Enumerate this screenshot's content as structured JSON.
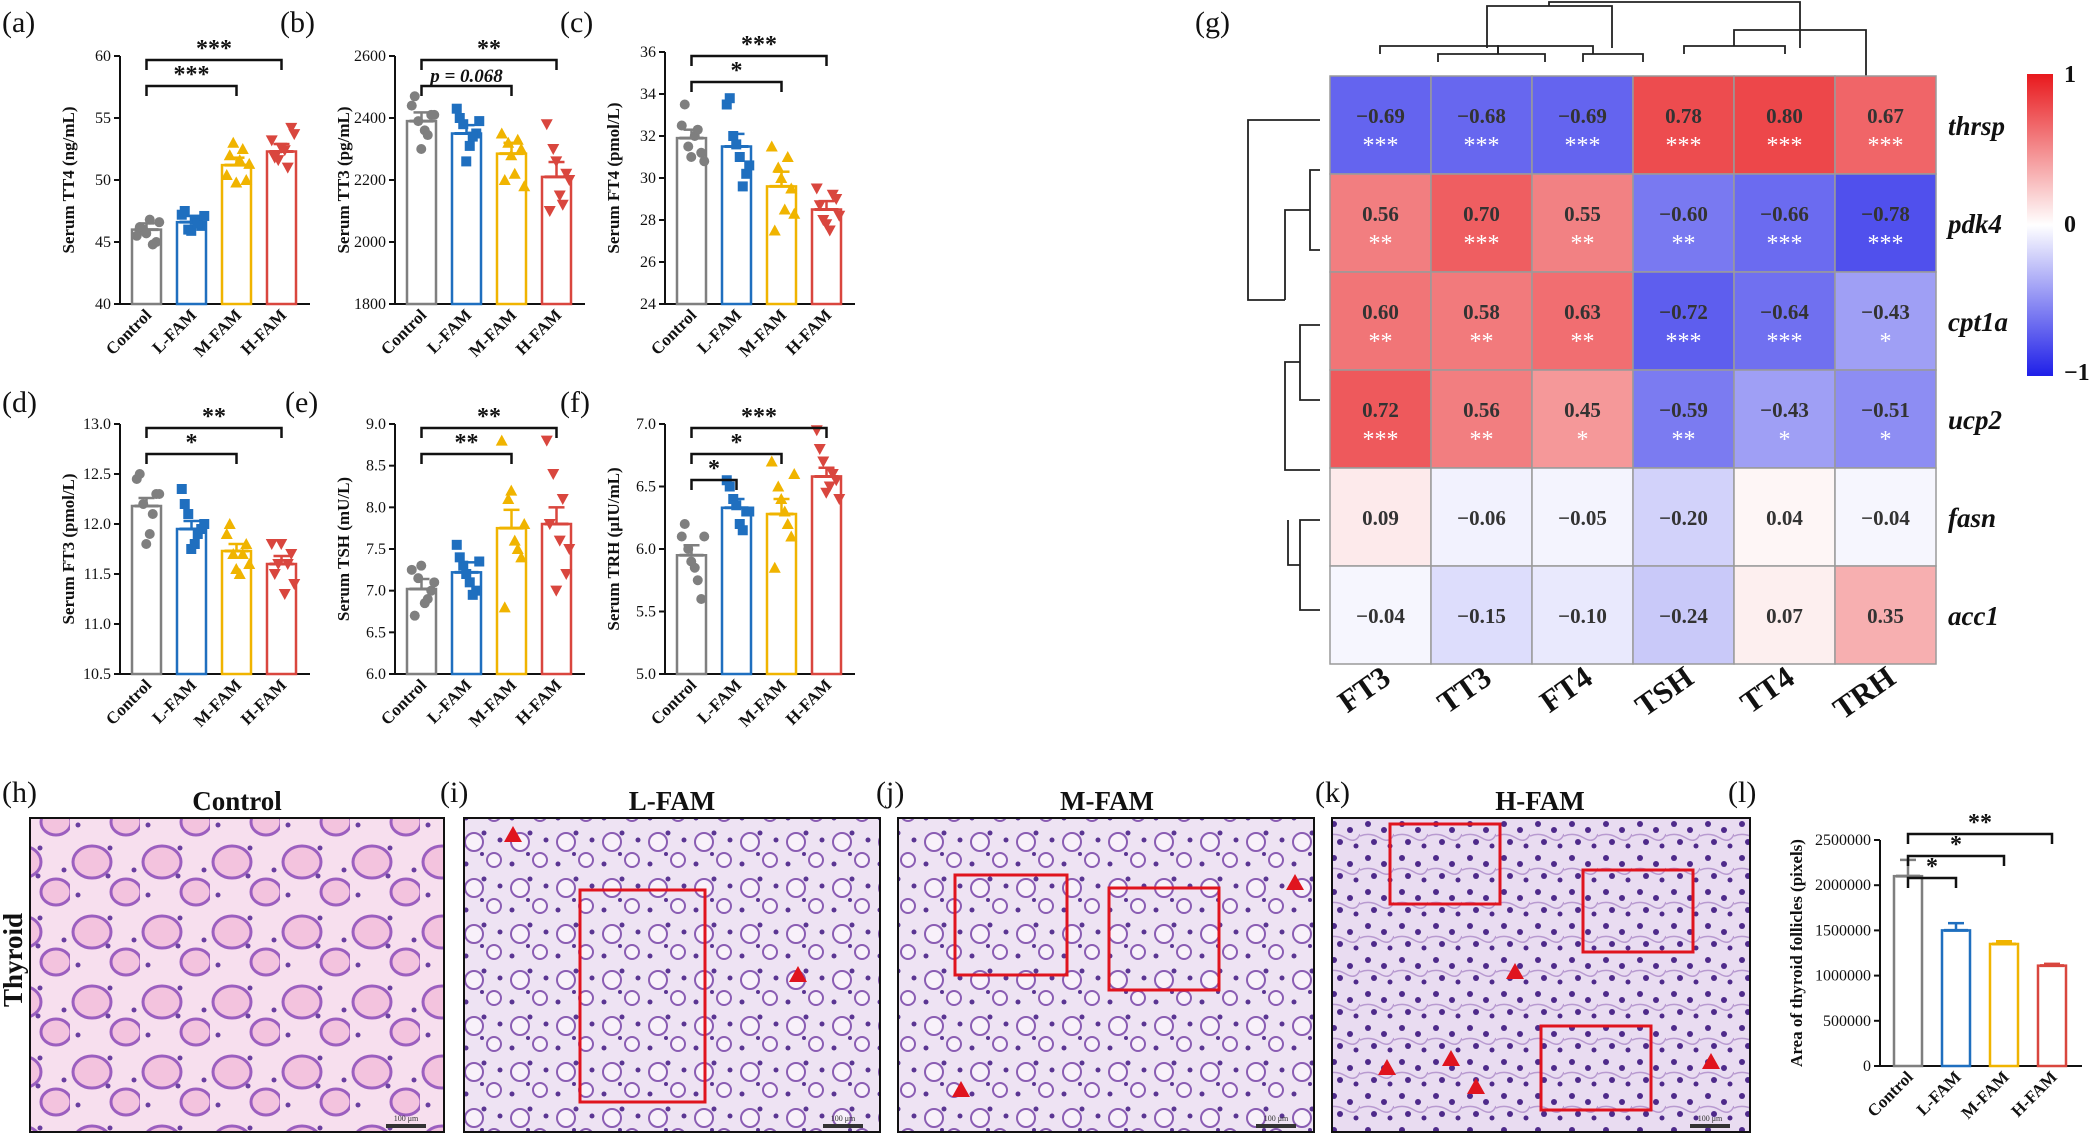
{
  "panel_labels": {
    "a": "(a)",
    "b": "(b)",
    "c": "(c)",
    "d": "(d)",
    "e": "(e)",
    "f": "(f)",
    "g": "(g)",
    "h": "(h)",
    "i": "(i)",
    "j": "(j)",
    "k": "(k)",
    "l": "(l)"
  },
  "groups": [
    "Control",
    "L-FAM",
    "M-FAM",
    "H-FAM"
  ],
  "group_colors": [
    "#7f7f7f",
    "#1f6fbf",
    "#f0b400",
    "#d9463e"
  ],
  "point_shapes": [
    "circle",
    "square",
    "triangle-up",
    "triangle-down"
  ],
  "chart_data": [
    {
      "id": "a",
      "type": "bar",
      "ylabel": "Serum TT4 (ng/mL)",
      "ylim": [
        40,
        60
      ],
      "yticks": [
        "40",
        "45",
        "50",
        "55",
        "60"
      ],
      "categories": [
        "Control",
        "L-FAM",
        "M-FAM",
        "H-FAM"
      ],
      "values": [
        46.0,
        46.6,
        51.2,
        52.3
      ],
      "errors": [
        0.5,
        0.5,
        0.6,
        0.6
      ],
      "points": [
        [
          45.5,
          46,
          46.8,
          45,
          46.2,
          45.7,
          44.8,
          46.6
        ],
        [
          47.2,
          46,
          46.8,
          46.3,
          47.5,
          45.9,
          46.5,
          47.1
        ],
        [
          50.4,
          53,
          51.6,
          50,
          52,
          49.8,
          52.5,
          51.3
        ],
        [
          53.2,
          51.6,
          52.4,
          54.2,
          51.8,
          52.6,
          51,
          53.7
        ]
      ],
      "sig": [
        {
          "from": 0,
          "to": 3,
          "label": "***"
        },
        {
          "from": 0,
          "to": 2,
          "label": "***"
        }
      ]
    },
    {
      "id": "b",
      "type": "bar",
      "ylabel": "Serum TT3 (pg/mL)",
      "ylim": [
        1800,
        2600
      ],
      "yticks": [
        "1800",
        "2000",
        "2200",
        "2400",
        "2600"
      ],
      "categories": [
        "Control",
        "L-FAM",
        "M-FAM",
        "H-FAM"
      ],
      "values": [
        2390,
        2350,
        2285,
        2210
      ],
      "errors": [
        28,
        27,
        35,
        48
      ],
      "points": [
        [
          2440,
          2390,
          2360,
          2410,
          2470,
          2300,
          2345,
          2410
        ],
        [
          2430,
          2380,
          2310,
          2350,
          2400,
          2260,
          2340,
          2390
        ],
        [
          2350,
          2320,
          2220,
          2300,
          2200,
          2280,
          2330,
          2180
        ],
        [
          2380,
          2300,
          2150,
          2220,
          2100,
          2260,
          2120,
          2200
        ]
      ],
      "sig": [
        {
          "from": 0,
          "to": 3,
          "label": "**"
        },
        {
          "from": 0,
          "to": 2,
          "label": "p = 0.068"
        }
      ]
    },
    {
      "id": "c",
      "type": "bar",
      "ylabel": "Serum FT4 (pmol/L)",
      "ylim": [
        24,
        36
      ],
      "yticks": [
        "24",
        "26",
        "28",
        "30",
        "32",
        "34",
        "36"
      ],
      "categories": [
        "Control",
        "L-FAM",
        "M-FAM",
        "H-FAM"
      ],
      "values": [
        31.9,
        31.5,
        29.6,
        28.5
      ],
      "errors": [
        0.4,
        0.6,
        0.7,
        0.4
      ],
      "points": [
        [
          32.5,
          31.5,
          32,
          31.2,
          33.5,
          31,
          32.3,
          30.8
        ],
        [
          33.5,
          32,
          31,
          30.2,
          33.8,
          31.6,
          29.6,
          30.6
        ],
        [
          31.5,
          30.5,
          28.5,
          29.5,
          27.5,
          30,
          31,
          28.3
        ],
        [
          29.5,
          28,
          27.5,
          29,
          28.7,
          27.8,
          29.2,
          28.2
        ]
      ],
      "sig": [
        {
          "from": 0,
          "to": 3,
          "label": "***"
        },
        {
          "from": 0,
          "to": 2,
          "label": "*"
        }
      ]
    },
    {
      "id": "d",
      "type": "bar",
      "ylabel": "Serum FT3 (pmol/L)",
      "ylim": [
        10.5,
        13.0
      ],
      "yticks": [
        "10.5",
        "11.0",
        "11.5",
        "12.0",
        "12.5",
        "13.0"
      ],
      "categories": [
        "Control",
        "L-FAM",
        "M-FAM",
        "H-FAM"
      ],
      "values": [
        12.18,
        11.95,
        11.73,
        11.6
      ],
      "errors": [
        0.08,
        0.08,
        0.07,
        0.08
      ],
      "points": [
        [
          12.45,
          12.2,
          11.9,
          12.3,
          12.5,
          11.8,
          12.1,
          12.3
        ],
        [
          12.35,
          12.1,
          11.8,
          11.95,
          12.2,
          11.75,
          11.9,
          12.0
        ],
        [
          11.9,
          11.7,
          11.5,
          11.8,
          12.0,
          11.55,
          11.7,
          11.6
        ],
        [
          11.8,
          11.6,
          11.3,
          11.7,
          11.5,
          11.8,
          11.6,
          11.4
        ]
      ],
      "sig": [
        {
          "from": 0,
          "to": 3,
          "label": "**"
        },
        {
          "from": 0,
          "to": 2,
          "label": "*"
        }
      ]
    },
    {
      "id": "e",
      "type": "bar",
      "ylabel": "Serum TSH (mU/L)",
      "ylim": [
        6.0,
        9.0
      ],
      "yticks": [
        "6.0",
        "6.5",
        "7.0",
        "7.5",
        "8.0",
        "8.5",
        "9.0"
      ],
      "categories": [
        "Control",
        "L-FAM",
        "M-FAM",
        "H-FAM"
      ],
      "values": [
        7.02,
        7.22,
        7.75,
        7.8
      ],
      "errors": [
        0.12,
        0.12,
        0.22,
        0.2
      ],
      "points": [
        [
          7.25,
          7.15,
          6.85,
          7.0,
          6.7,
          7.3,
          6.9,
          7.1
        ],
        [
          7.55,
          7.3,
          7.1,
          7.0,
          7.4,
          7.2,
          6.95,
          7.35
        ],
        [
          8.8,
          8.1,
          7.6,
          7.4,
          6.8,
          8.2,
          7.5,
          7.8
        ],
        [
          8.8,
          8.4,
          7.6,
          7.2,
          7.8,
          7.0,
          8.1,
          7.5
        ]
      ],
      "sig": [
        {
          "from": 0,
          "to": 3,
          "label": "**"
        },
        {
          "from": 0,
          "to": 2,
          "label": "**"
        }
      ]
    },
    {
      "id": "f",
      "type": "bar",
      "ylabel": "Serum TRH (μIU/mL)",
      "ylim": [
        5.0,
        7.0
      ],
      "yticks": [
        "5.0",
        "5.5",
        "6.0",
        "6.5",
        "7.0"
      ],
      "categories": [
        "Control",
        "L-FAM",
        "M-FAM",
        "H-FAM"
      ],
      "values": [
        5.95,
        6.33,
        6.28,
        6.58
      ],
      "errors": [
        0.08,
        0.07,
        0.12,
        0.07
      ],
      "points": [
        [
          6.1,
          6.0,
          5.85,
          5.6,
          6.2,
          5.9,
          5.75,
          6.1
        ],
        [
          6.55,
          6.4,
          6.2,
          6.3,
          6.5,
          6.35,
          6.15,
          6.3
        ],
        [
          6.7,
          6.5,
          6.3,
          6.1,
          5.85,
          6.4,
          6.2,
          6.6
        ],
        [
          6.95,
          6.7,
          6.5,
          6.55,
          6.8,
          6.45,
          6.6,
          6.4
        ]
      ],
      "sig": [
        {
          "from": 0,
          "to": 3,
          "label": "***"
        },
        {
          "from": 0,
          "to": 2,
          "label": "*"
        },
        {
          "from": 0,
          "to": 1,
          "label": "*"
        }
      ]
    },
    {
      "id": "g",
      "type": "heatmap",
      "columns": [
        "FT3",
        "TT3",
        "FT4",
        "TSH",
        "TT4",
        "TRH"
      ],
      "rows": [
        "thrsp",
        "pdk4",
        "cpt1a",
        "ucp2",
        "fasn",
        "acc1"
      ],
      "values": [
        [
          -0.69,
          -0.68,
          -0.69,
          0.78,
          0.8,
          0.67
        ],
        [
          0.56,
          0.7,
          0.55,
          -0.6,
          -0.66,
          -0.78
        ],
        [
          0.6,
          0.58,
          0.63,
          -0.72,
          -0.64,
          -0.43
        ],
        [
          0.72,
          0.56,
          0.45,
          -0.59,
          -0.43,
          -0.51
        ],
        [
          0.09,
          -0.06,
          -0.05,
          -0.2,
          0.04,
          -0.04
        ],
        [
          -0.04,
          -0.15,
          -0.1,
          -0.24,
          0.07,
          0.35
        ]
      ],
      "labels": [
        [
          "−0.69",
          "−0.68",
          "−0.69",
          "0.78",
          "0.80",
          "0.67"
        ],
        [
          "0.56",
          "0.70",
          "0.55",
          "−0.60",
          "−0.66",
          "−0.78"
        ],
        [
          "0.60",
          "0.58",
          "0.63",
          "−0.72",
          "−0.64",
          "−0.43"
        ],
        [
          "0.72",
          "0.56",
          "0.45",
          "−0.59",
          "−0.43",
          "−0.51"
        ],
        [
          "0.09",
          "−0.06",
          "−0.05",
          "−0.20",
          "0.04",
          "−0.04"
        ],
        [
          "−0.04",
          "−0.15",
          "−0.10",
          "−0.24",
          "0.07",
          "0.35"
        ]
      ],
      "stars": [
        [
          "***",
          "***",
          "***",
          "***",
          "***",
          "***"
        ],
        [
          "**",
          "***",
          "**",
          "**",
          "***",
          "***"
        ],
        [
          "**",
          "**",
          "**",
          "***",
          "***",
          "*"
        ],
        [
          "***",
          "**",
          "*",
          "**",
          "*",
          "*"
        ],
        [
          "",
          "",
          "",
          "",
          "",
          ""
        ],
        [
          "",
          "",
          "",
          "",
          "",
          ""
        ]
      ],
      "colorbar": {
        "range": [
          -1,
          1
        ],
        "tick_labels": [
          "1",
          "0",
          "−1"
        ],
        "high": "#e8191d",
        "mid": "#ffffff",
        "low": "#1f1fe8"
      }
    },
    {
      "id": "l",
      "type": "bar",
      "ylabel": "Area of thyroid follicles (pixels)",
      "ylim": [
        0,
        2500000
      ],
      "yticks": [
        "0",
        "500000",
        "1000000",
        "1500000",
        "2000000",
        "2500000"
      ],
      "categories": [
        "Control",
        "L-FAM",
        "M-FAM",
        "H-FAM"
      ],
      "values": [
        2100000,
        1500000,
        1350000,
        1110000
      ],
      "errors": [
        180000,
        80000,
        30000,
        20000
      ],
      "sig": [
        {
          "from": 0,
          "to": 3,
          "label": "**"
        },
        {
          "from": 0,
          "to": 2,
          "label": "*"
        },
        {
          "from": 0,
          "to": 1,
          "label": "*"
        }
      ]
    }
  ],
  "histology": {
    "row_label": "Thyroid",
    "titles": [
      "Control",
      "L-FAM",
      "M-FAM",
      "H-FAM"
    ],
    "scale_label": "100 μm"
  }
}
